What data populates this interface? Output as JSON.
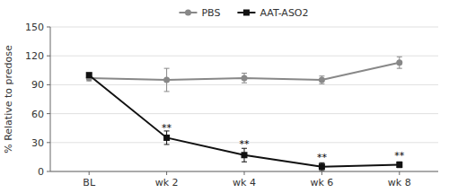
{
  "chart_data": {
    "type": "line",
    "ylabel": "% Relative to predose",
    "categories": [
      "BL",
      "wk 2",
      "wk 4",
      "wk 6",
      "wk 8"
    ],
    "series": [
      {
        "name": "PBS",
        "color": "#888888",
        "marker": "circle",
        "values": [
          97,
          95,
          97,
          95,
          113
        ],
        "errors": [
          3,
          12,
          5,
          4,
          6
        ]
      },
      {
        "name": "AAT-ASO2",
        "color": "#111111",
        "marker": "square",
        "values": [
          100,
          35,
          17,
          5,
          7
        ],
        "errors": [
          2,
          7,
          7,
          4,
          3
        ]
      }
    ],
    "annotations": [
      {
        "category": "wk 2",
        "y": 42,
        "label": "**"
      },
      {
        "category": "wk 4",
        "y": 25,
        "label": "**"
      },
      {
        "category": "wk 6",
        "y": 11,
        "label": "**"
      },
      {
        "category": "wk 8",
        "y": 13,
        "label": "**"
      }
    ],
    "ylim": [
      0,
      150
    ],
    "yticks": [
      0,
      30,
      60,
      90,
      120,
      150
    ],
    "grid": true,
    "legend": "top"
  }
}
